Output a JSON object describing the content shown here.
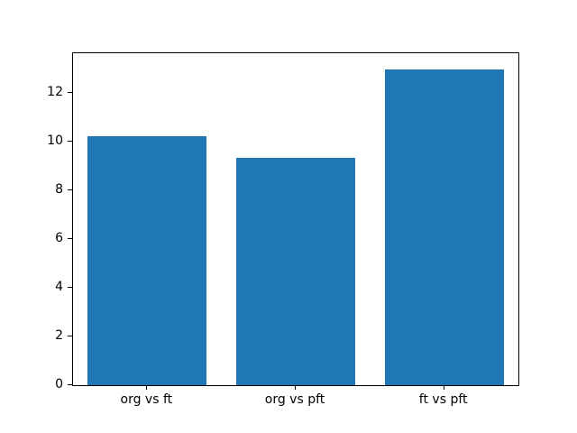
{
  "chart_data": {
    "type": "bar",
    "categories": [
      "org vs ft",
      "org vs pft",
      "ft vs pft"
    ],
    "values": [
      10.25,
      9.35,
      13.0
    ],
    "title": "",
    "xlabel": "",
    "ylabel": "",
    "ylim": [
      0,
      13.65
    ],
    "yticks": [
      0,
      2,
      4,
      6,
      8,
      10,
      12
    ],
    "bar_color": "#1f77b4",
    "axis_color": "#000000",
    "background_color": "#ffffff",
    "bar_width_fraction": 0.8,
    "grid": false,
    "legend": null
  }
}
